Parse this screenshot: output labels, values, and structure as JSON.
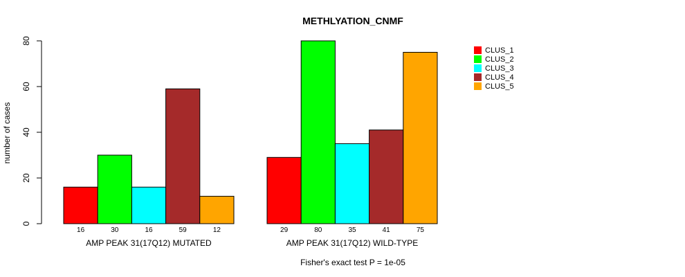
{
  "chart_data": {
    "type": "bar",
    "title": "METHLYATION_CNMF",
    "ylabel": "number of cases",
    "xlabel": "",
    "ylim": [
      0,
      80
    ],
    "yticks": [
      0,
      20,
      40,
      60,
      80
    ],
    "groups": [
      "AMP PEAK 31(17Q12) MUTATED",
      "AMP PEAK 31(17Q12) WILD-TYPE"
    ],
    "series": [
      {
        "name": "CLUS_1",
        "color": "#ff0000",
        "values": [
          16,
          29
        ]
      },
      {
        "name": "CLUS_2",
        "color": "#00ff00",
        "values": [
          30,
          80
        ]
      },
      {
        "name": "CLUS_3",
        "color": "#00ffff",
        "values": [
          16,
          35
        ]
      },
      {
        "name": "CLUS_4",
        "color": "#a52a2a",
        "values": [
          59,
          41
        ]
      },
      {
        "name": "CLUS_5",
        "color": "#ffa500",
        "values": [
          12,
          75
        ]
      }
    ],
    "legend_position": "top-right",
    "grid": false,
    "annotation": "Fisher's exact test P = 1e-05"
  }
}
